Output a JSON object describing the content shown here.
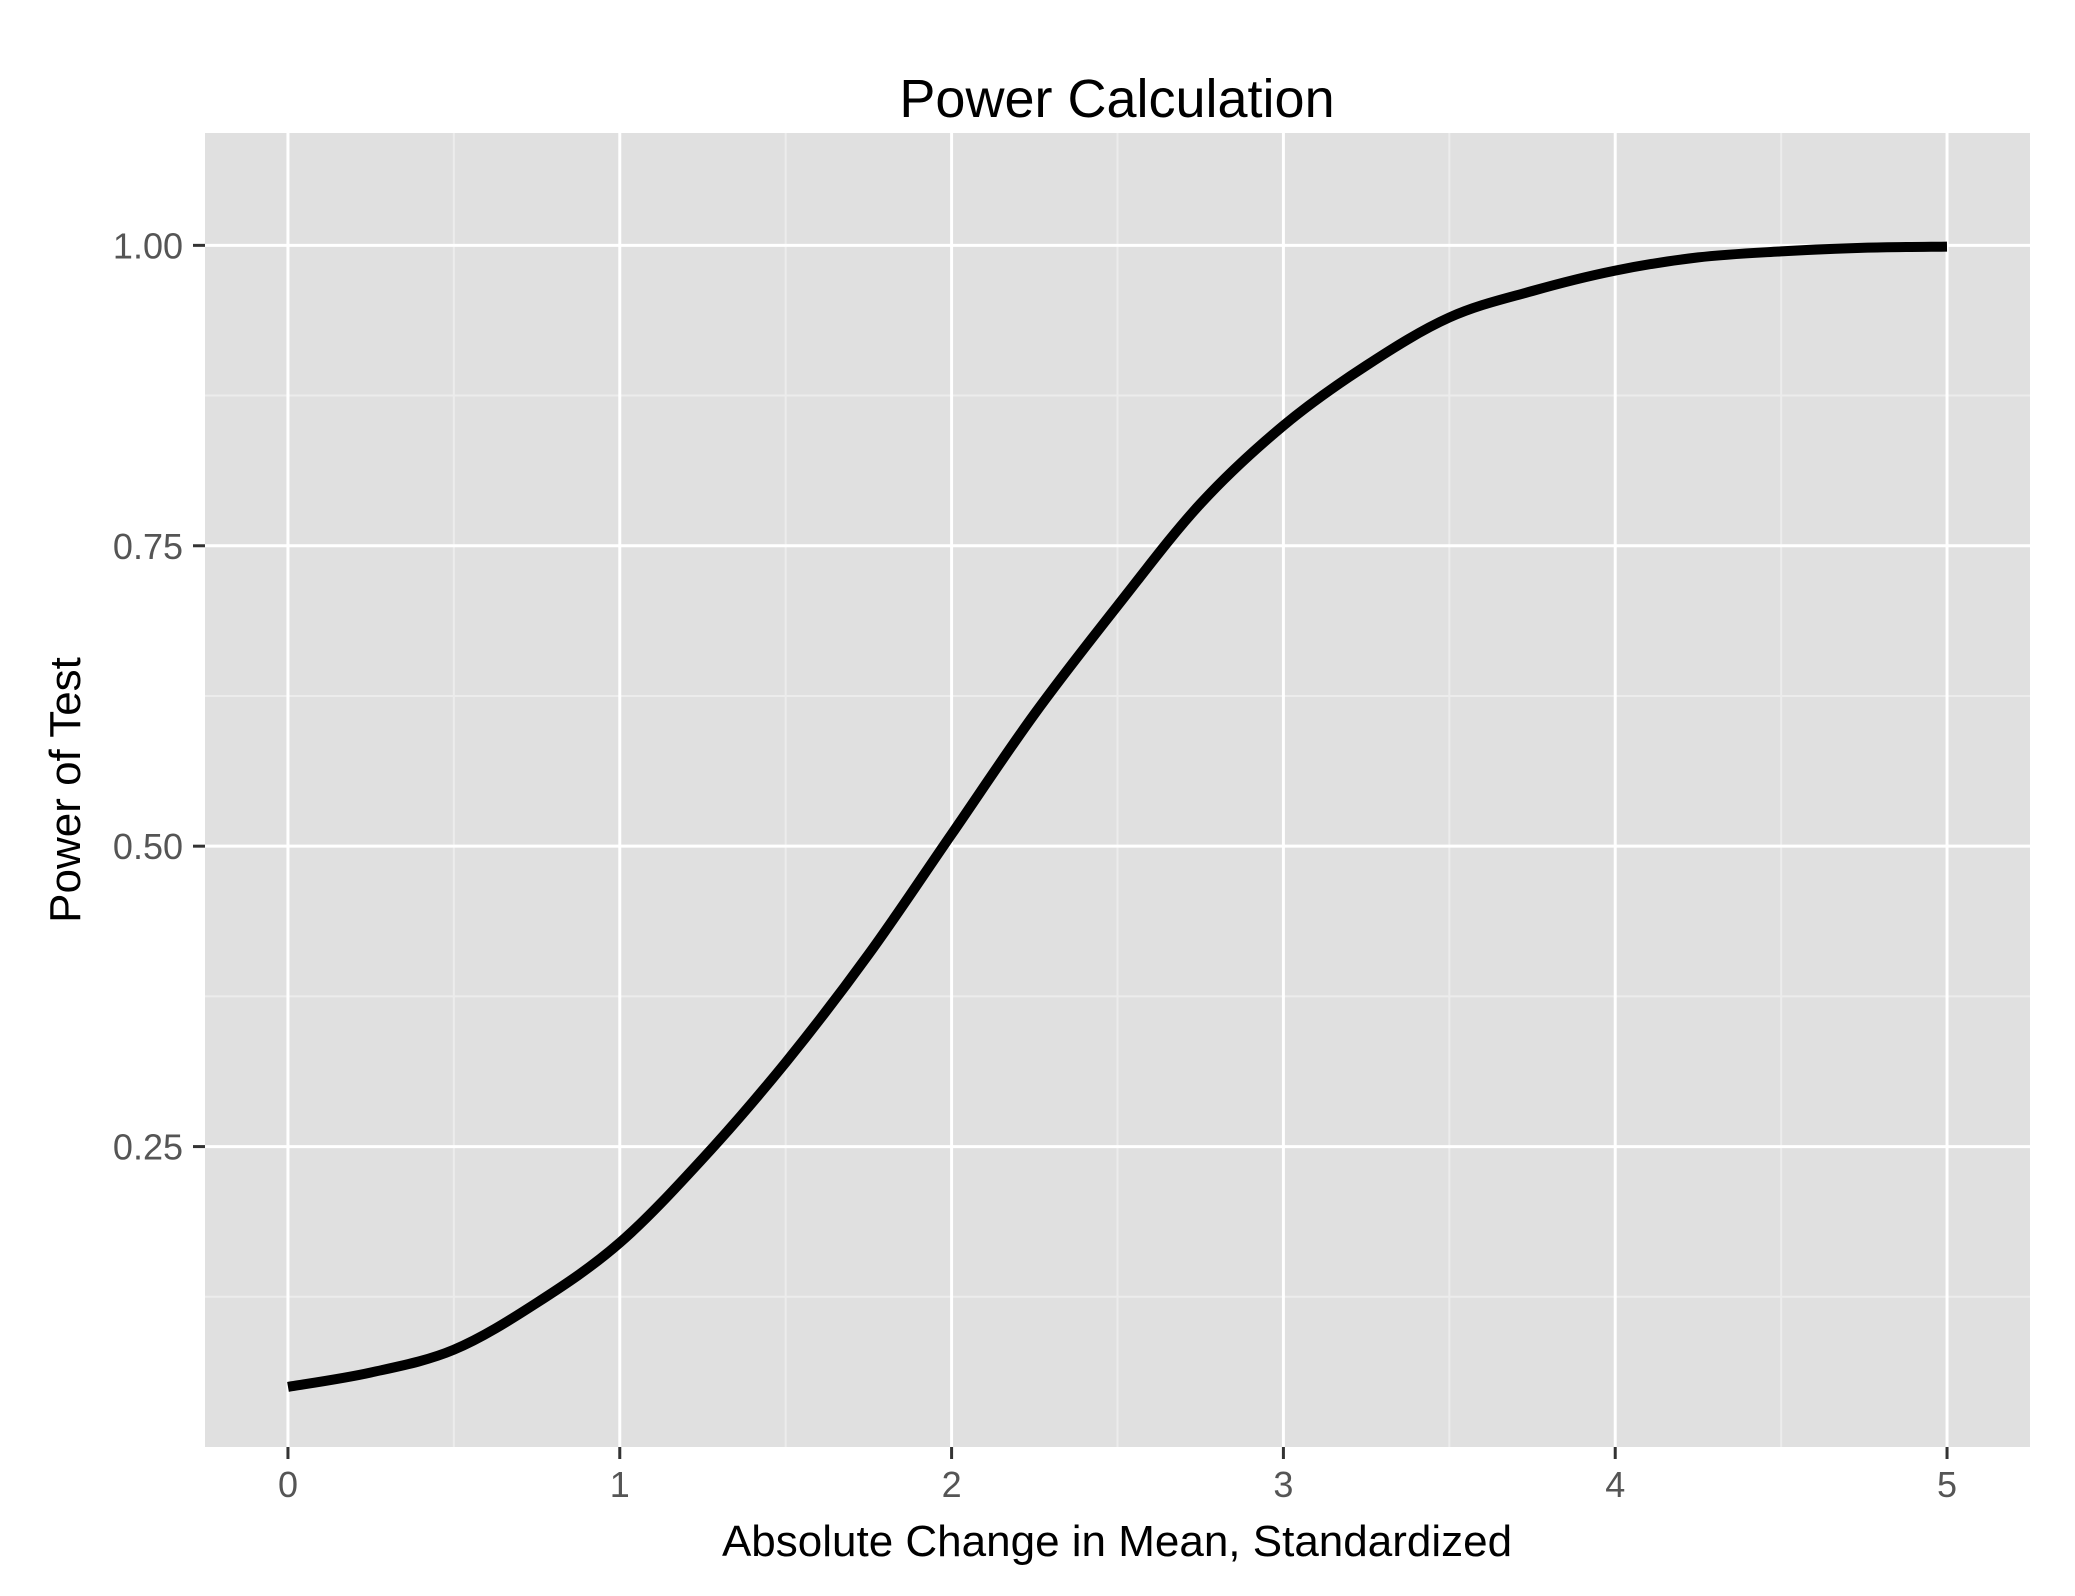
{
  "chart_data": {
    "type": "line",
    "title": "Power Calculation",
    "xlabel": "Absolute Change in Mean, Standardized",
    "ylabel": "Power of Test",
    "xlim": [
      -0.25,
      5.25
    ],
    "ylim": [
      0.0,
      1.0935
    ],
    "x_ticks": [
      0,
      1,
      2,
      3,
      4,
      5
    ],
    "x_tick_labels": [
      "0",
      "1",
      "2",
      "3",
      "4",
      "5"
    ],
    "y_ticks": [
      0.25,
      0.5,
      0.75,
      1.0
    ],
    "y_tick_labels": [
      "0.25",
      "0.50",
      "0.75",
      "1.00"
    ],
    "grid": true,
    "legend": "none",
    "colors": {
      "panel_background": "#e0e0e0",
      "grid_major": "#ffffff",
      "grid_minor": "#ececec",
      "line": "#000000"
    },
    "series": [
      {
        "x": [
          0,
          0.25,
          0.5,
          0.75,
          1.0,
          1.25,
          1.5,
          1.75,
          2.0,
          2.25,
          2.5,
          2.75,
          3.0,
          3.25,
          3.5,
          3.75,
          4.0,
          4.25,
          4.5,
          4.75,
          5.0
        ],
        "values": [
          0.05,
          0.062,
          0.081,
          0.12,
          0.17,
          0.24,
          0.32,
          0.41,
          0.51,
          0.61,
          0.7,
          0.785,
          0.85,
          0.9,
          0.94,
          0.962,
          0.979,
          0.99,
          0.995,
          0.998,
          0.999
        ]
      }
    ]
  }
}
